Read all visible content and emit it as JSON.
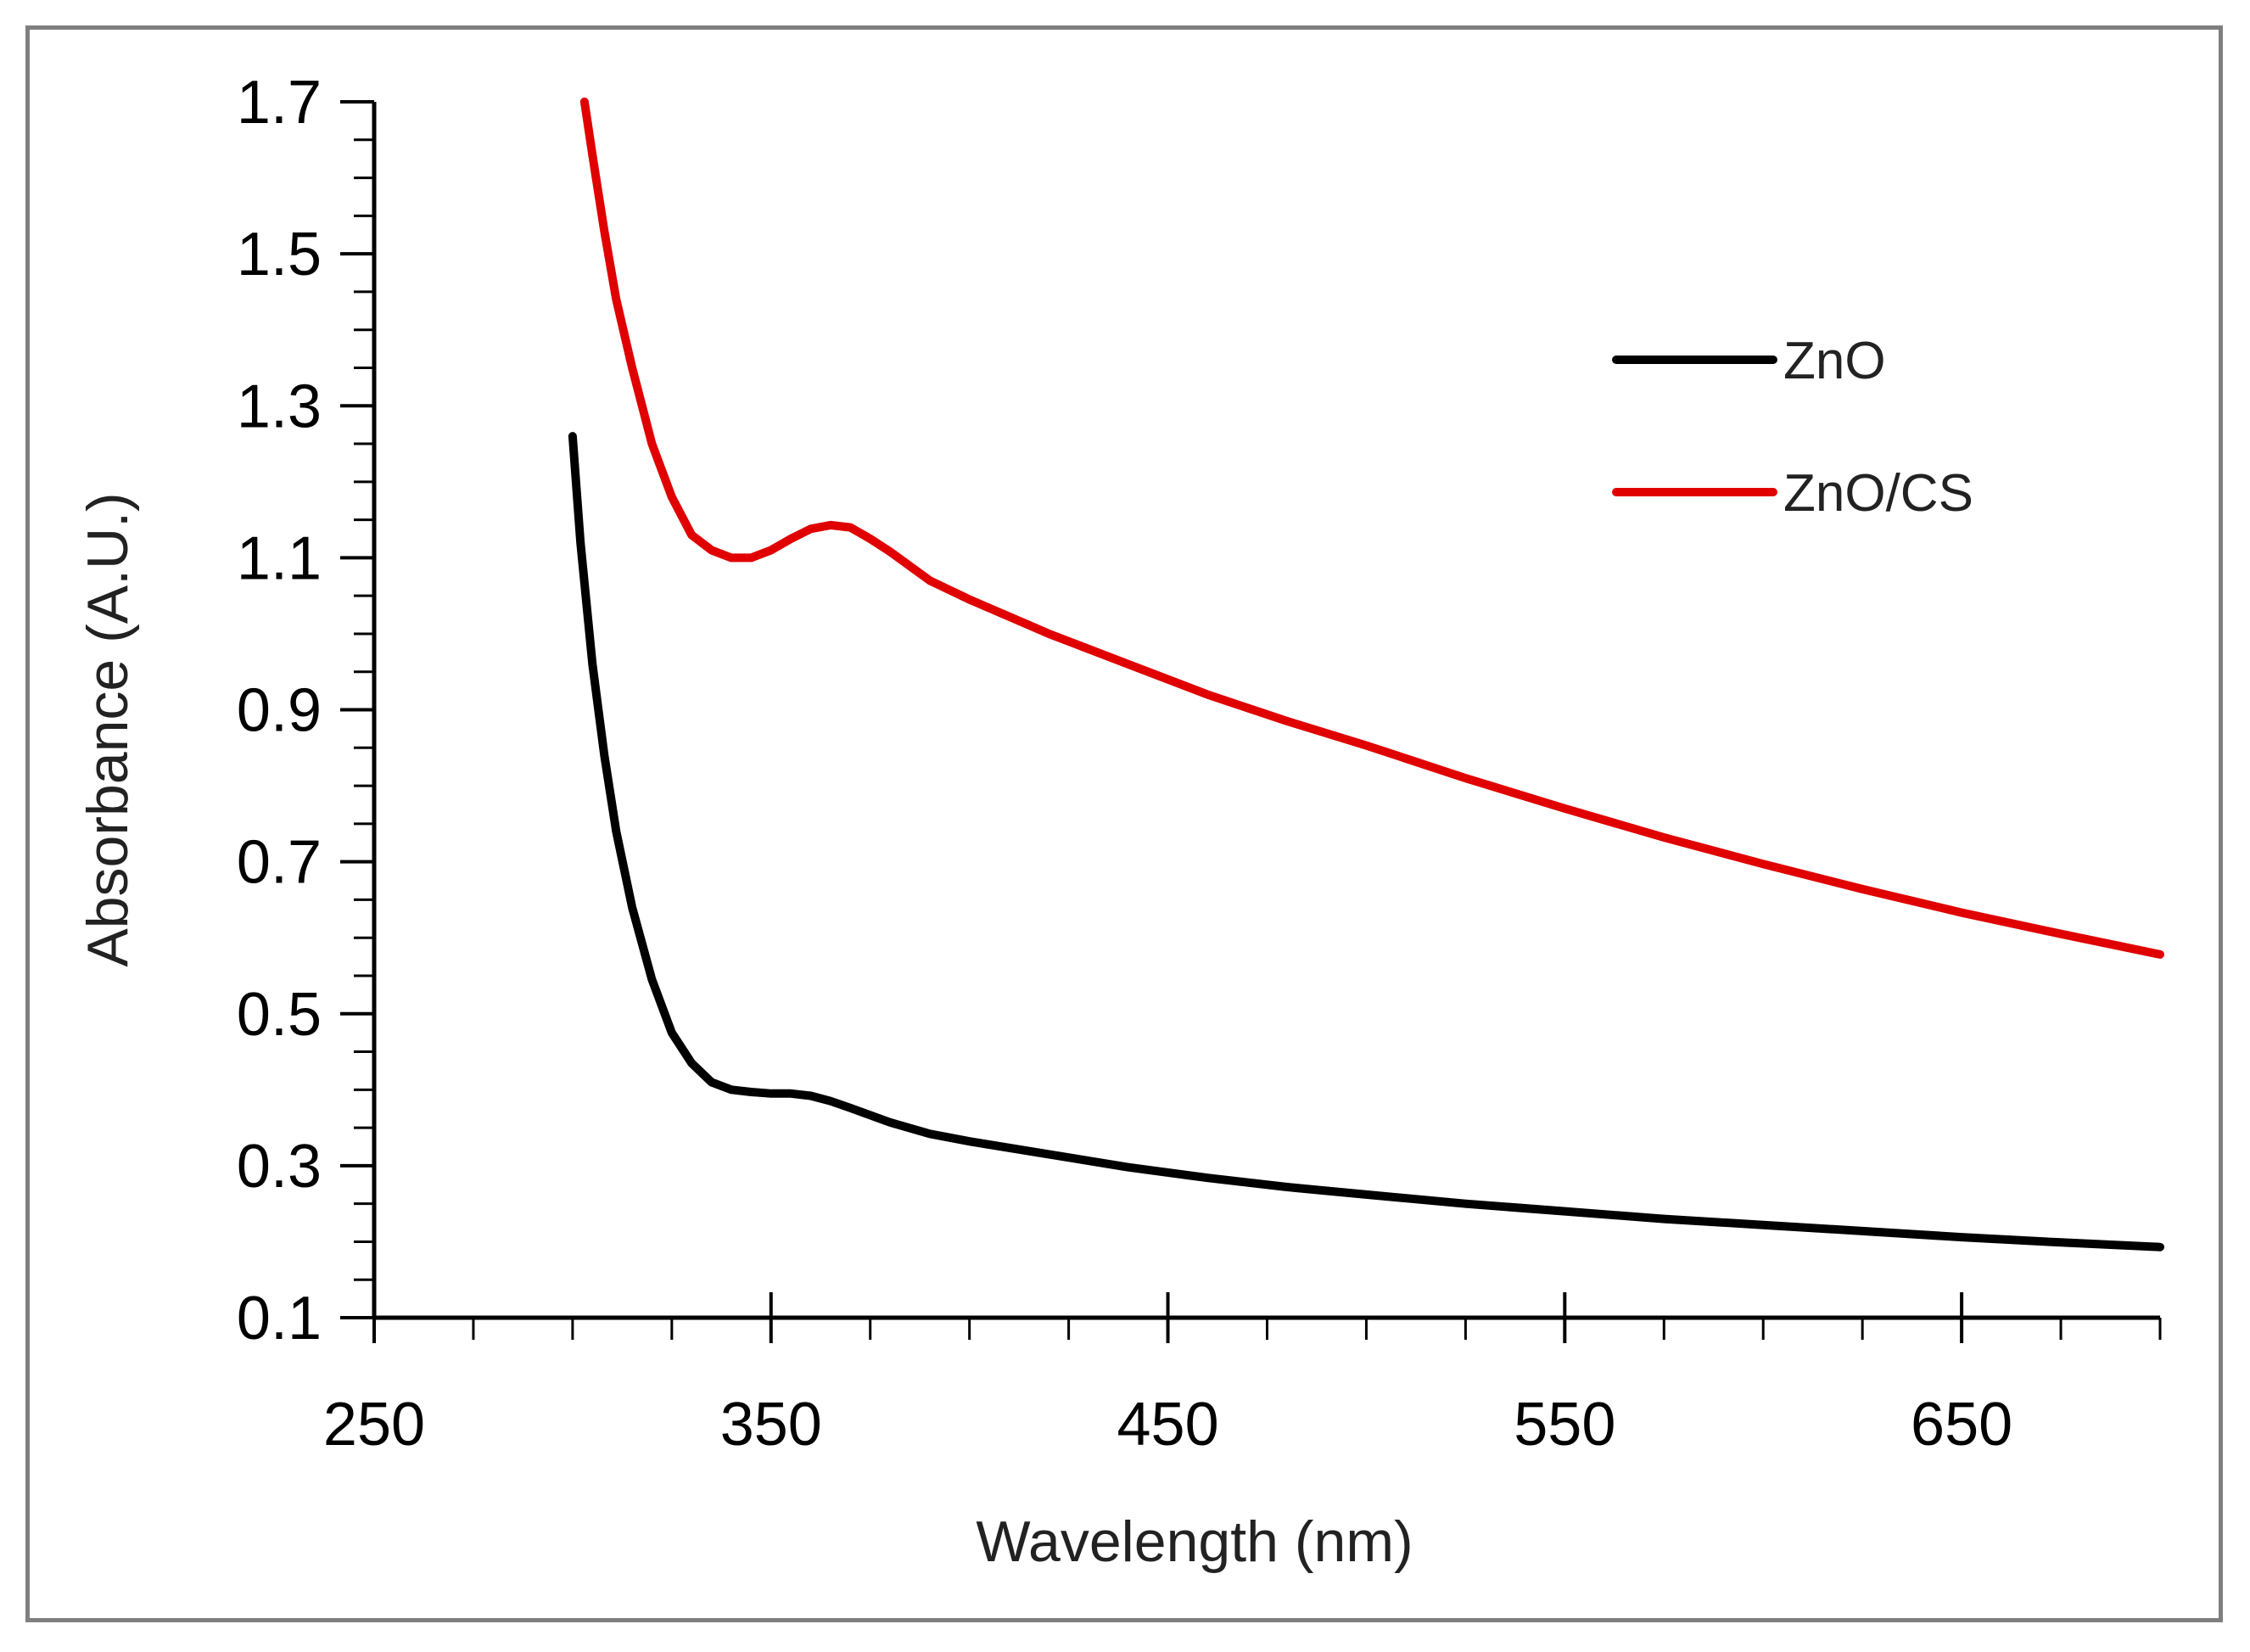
{
  "chart_data": {
    "type": "line",
    "title": "",
    "xlabel": "Wavelength (nm)",
    "ylabel": "Absorbance (A.U.)",
    "xlim": [
      250,
      700
    ],
    "ylim": [
      0.1,
      1.7
    ],
    "x_ticks": [
      250,
      350,
      450,
      550,
      650
    ],
    "x_tick_labels": [
      "250",
      "350",
      "450",
      "550",
      "650"
    ],
    "y_ticks": [
      0.1,
      0.3,
      0.5,
      0.7,
      0.9,
      1.1,
      1.3,
      1.5,
      1.7
    ],
    "y_tick_labels": [
      "0.1",
      "0.3",
      "0.5",
      "0.7",
      "0.9",
      "1.1",
      "1.3",
      "1.5",
      "1.7"
    ],
    "grid": false,
    "legend_position": "top-right",
    "series": [
      {
        "name": "ZnO",
        "color": "#000000",
        "x": [
          300,
          302,
          305,
          308,
          311,
          315,
          320,
          325,
          330,
          335,
          340,
          345,
          350,
          355,
          360,
          365,
          370,
          380,
          390,
          400,
          420,
          440,
          460,
          480,
          500,
          525,
          550,
          575,
          600,
          625,
          650,
          675,
          700
        ],
        "y": [
          1.26,
          1.12,
          0.96,
          0.84,
          0.74,
          0.64,
          0.545,
          0.475,
          0.435,
          0.41,
          0.4,
          0.397,
          0.395,
          0.395,
          0.392,
          0.385,
          0.376,
          0.357,
          0.342,
          0.332,
          0.315,
          0.298,
          0.284,
          0.272,
          0.262,
          0.25,
          0.24,
          0.23,
          0.222,
          0.214,
          0.206,
          0.199,
          0.193
        ]
      },
      {
        "name": "ZnO/CS",
        "color": "#e00000",
        "x": [
          303,
          305,
          308,
          311,
          315,
          320,
          325,
          330,
          335,
          340,
          345,
          350,
          355,
          360,
          365,
          370,
          375,
          380,
          390,
          400,
          420,
          440,
          460,
          480,
          500,
          525,
          550,
          575,
          600,
          625,
          650,
          675,
          700
        ],
        "y": [
          1.7,
          1.63,
          1.53,
          1.44,
          1.35,
          1.25,
          1.18,
          1.13,
          1.11,
          1.1,
          1.1,
          1.11,
          1.125,
          1.138,
          1.143,
          1.14,
          1.125,
          1.108,
          1.07,
          1.045,
          1.0,
          0.96,
          0.92,
          0.885,
          0.853,
          0.81,
          0.77,
          0.732,
          0.697,
          0.664,
          0.633,
          0.605,
          0.578
        ]
      }
    ]
  }
}
